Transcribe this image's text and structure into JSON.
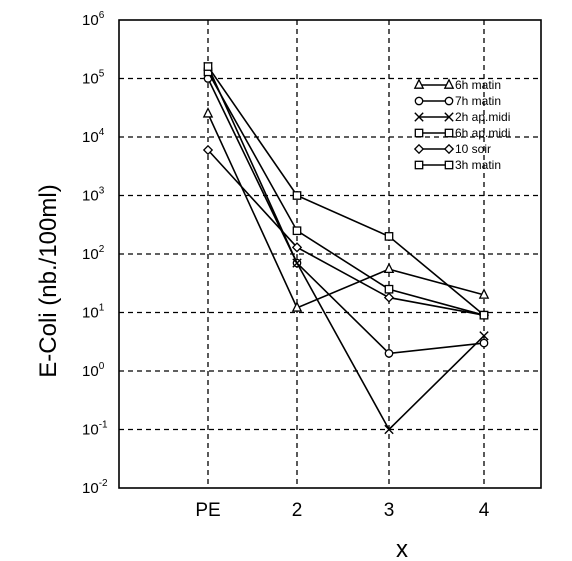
{
  "chart_data": {
    "type": "line",
    "yscale": "log",
    "ylim": [
      0.01,
      1000000
    ],
    "y_tick_labels": [
      {
        "base": "10",
        "exp": "-2"
      },
      {
        "base": "10",
        "exp": "-1"
      },
      {
        "base": "10",
        "exp": "0"
      },
      {
        "base": "10",
        "exp": "1"
      },
      {
        "base": "10",
        "exp": "2"
      },
      {
        "base": "10",
        "exp": "3"
      },
      {
        "base": "10",
        "exp": "4"
      },
      {
        "base": "10",
        "exp": "5"
      },
      {
        "base": "10",
        "exp": "6"
      }
    ],
    "categories": [
      "PE",
      "2",
      "3",
      "4"
    ],
    "xlabel": "x",
    "ylabel": "E-Coli  (nb./100ml)",
    "grid": true,
    "legend_position": "top-right",
    "series": [
      {
        "name": "6h  matin",
        "marker": "triangle",
        "values": [
          25000,
          12,
          55,
          20
        ]
      },
      {
        "name": "7h  matin",
        "marker": "circle",
        "values": [
          100000,
          70,
          2,
          3
        ]
      },
      {
        "name": "2h  ap.midi",
        "marker": "x",
        "values": [
          160000,
          70,
          0.1,
          4
        ]
      },
      {
        "name": "6h  ap.midi",
        "marker": "square",
        "values": [
          130000,
          250,
          25,
          9
        ]
      },
      {
        "name": "10  soir",
        "marker": "diamond",
        "values": [
          6000,
          130,
          18,
          9
        ]
      },
      {
        "name": "3h  matin",
        "marker": "square",
        "values": [
          160000,
          1000,
          200,
          9
        ]
      }
    ]
  }
}
